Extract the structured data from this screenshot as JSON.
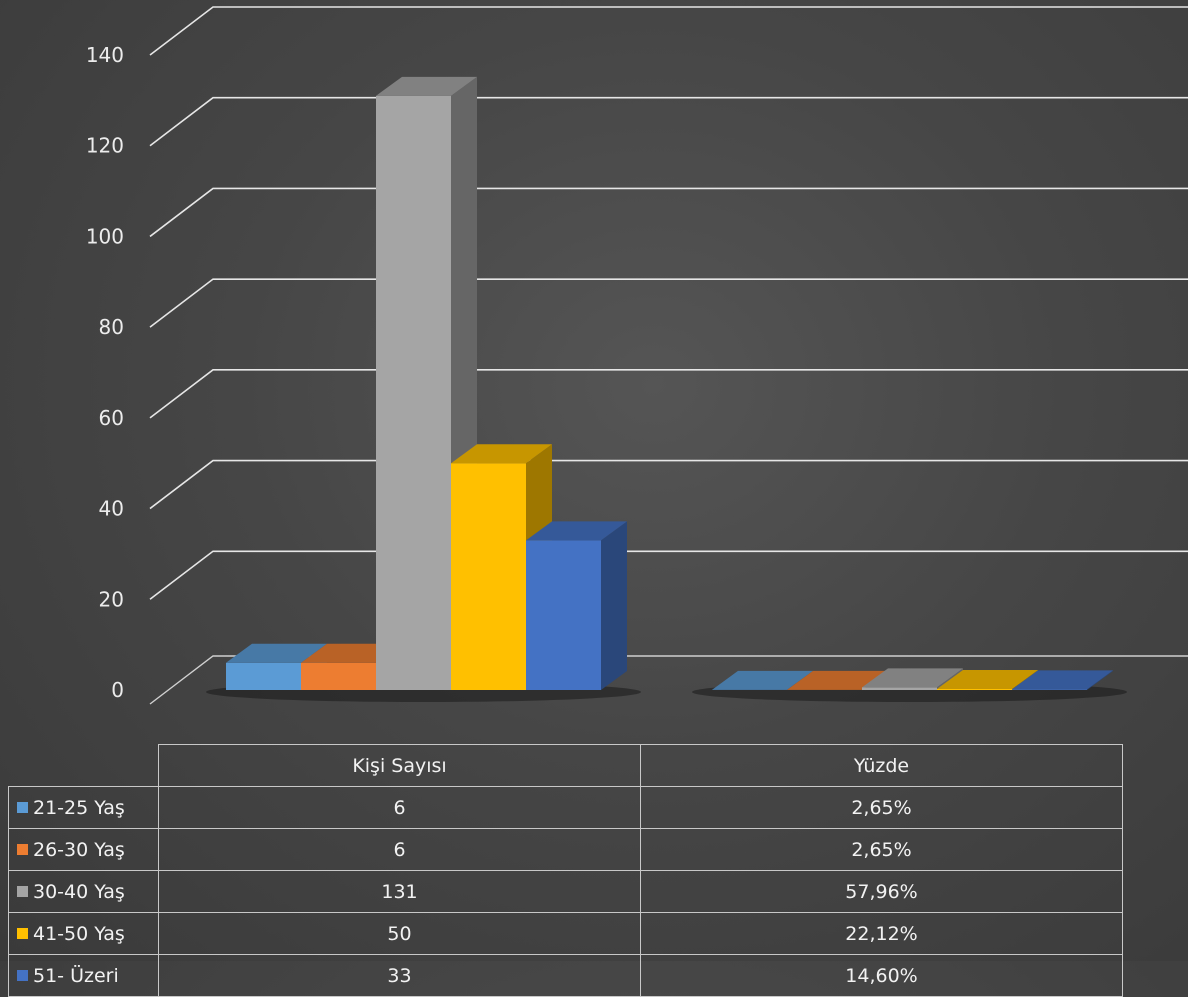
{
  "chart_data": {
    "type": "bar",
    "categories": [
      "Kişi Sayısı",
      "Yüzde"
    ],
    "series": [
      {
        "name": "21-25 Yaş",
        "color": "#5b9bd5",
        "values": [
          6,
          0.0265
        ],
        "labels": [
          "6",
          "2,65%"
        ]
      },
      {
        "name": "26-30 Yaş",
        "color": "#ed7d31",
        "values": [
          6,
          0.0265
        ],
        "labels": [
          "6",
          "2,65%"
        ]
      },
      {
        "name": "30-40 Yaş",
        "color": "#a5a5a5",
        "values": [
          131,
          0.5796
        ],
        "labels": [
          "131",
          "57,96%"
        ]
      },
      {
        "name": "41-50 Yaş",
        "color": "#ffc000",
        "values": [
          50,
          0.2212
        ],
        "labels": [
          "50",
          "22,12%"
        ]
      },
      {
        "name": "51- Üzeri",
        "color": "#4472c4",
        "values": [
          33,
          0.146
        ],
        "labels": [
          "33",
          "14,60%"
        ]
      }
    ],
    "y_ticks": [
      "0",
      "20",
      "40",
      "60",
      "80",
      "100",
      "120",
      "140"
    ],
    "ylim": [
      0,
      140
    ],
    "grid": true,
    "legend": "data-table-below",
    "style": "3d-clustered-column"
  }
}
